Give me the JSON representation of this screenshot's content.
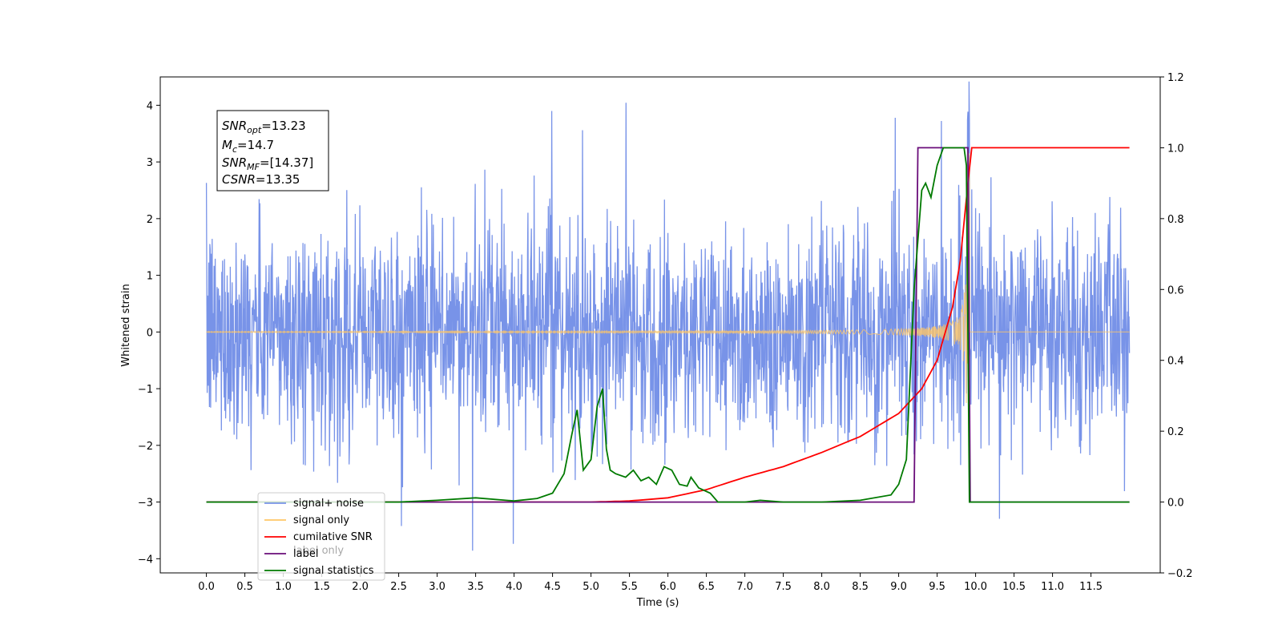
{
  "chart_data": {
    "type": "line",
    "xlabel": "Time (s)",
    "ylabel_left": "Whitened strain",
    "xlim": [
      -0.6,
      12.4
    ],
    "ylim_left": [
      -4.25,
      4.5
    ],
    "ylim_right": [
      -0.2,
      1.2
    ],
    "x_ticks": [
      "0.0",
      "0.5",
      "1.0",
      "1.5",
      "2.0",
      "2.5",
      "3.0",
      "3.5",
      "4.0",
      "4.5",
      "5.0",
      "5.5",
      "6.0",
      "6.5",
      "7.0",
      "7.5",
      "8.0",
      "8.5",
      "9.0",
      "9.5",
      "10.0",
      "10.5",
      "11.0",
      "11.5"
    ],
    "y_ticks_left": [
      "4",
      "3",
      "2",
      "1",
      "0",
      "−1",
      "−2",
      "−3",
      "−4"
    ],
    "y_ticks_right": [
      "1.2",
      "1.0",
      "0.8",
      "0.6",
      "0.4",
      "0.2",
      "0.0",
      "−0.2"
    ],
    "annotation": {
      "snr_opt": "=13.23",
      "mc": "=14.7",
      "snr_mf": "=[14.37]",
      "csnr": "=13.35"
    },
    "legend": {
      "position": "lower-left",
      "entries": [
        {
          "label": "signal+ noise",
          "color": "#7893e8"
        },
        {
          "label": "signal only",
          "color": "#ffc766"
        },
        {
          "label": "cumilative SNR",
          "color": "#ff0000"
        },
        {
          "label": "label",
          "color": "#6a0d7a"
        },
        {
          "label": "signal statistics",
          "color": "#007a00"
        }
      ]
    },
    "hidden_legend_text": "label only",
    "series": [
      {
        "name": "signal+ noise",
        "axis": "left",
        "description": "whitened noise plus signal, 0–12 s",
        "x_range": [
          0,
          12
        ],
        "y_range": [
          -3.85,
          4.12
        ]
      },
      {
        "name": "signal only",
        "axis": "left",
        "description": "chirp with growing amplitude, merger near 9.9 s",
        "peak_time": 9.9,
        "peak_amplitude": 3.2
      },
      {
        "name": "cumilative SNR",
        "axis": "right",
        "x": [
          0,
          5,
          5.5,
          6,
          6.5,
          7,
          7.5,
          8,
          8.5,
          9,
          9.3,
          9.5,
          9.7,
          9.8,
          9.9,
          9.95,
          10,
          12
        ],
        "y": [
          0,
          0,
          0.003,
          0.012,
          0.035,
          0.07,
          0.1,
          0.14,
          0.185,
          0.25,
          0.32,
          0.4,
          0.55,
          0.68,
          0.9,
          1.0,
          1.0,
          1.0
        ]
      },
      {
        "name": "label",
        "axis": "right",
        "x": [
          0,
          9.2,
          9.25,
          9.9,
          9.93,
          12
        ],
        "y": [
          0,
          0,
          1.0,
          1.0,
          0,
          0
        ]
      },
      {
        "name": "signal statistics",
        "axis": "right",
        "x": [
          0,
          2.5,
          3.0,
          3.5,
          4.0,
          4.3,
          4.5,
          4.65,
          4.75,
          4.82,
          4.9,
          5.0,
          5.08,
          5.15,
          5.2,
          5.25,
          5.32,
          5.45,
          5.55,
          5.65,
          5.75,
          5.85,
          5.95,
          6.05,
          6.15,
          6.25,
          6.3,
          6.4,
          6.55,
          6.65,
          7.0,
          7.2,
          7.5,
          8.0,
          8.5,
          8.9,
          9.0,
          9.1,
          9.2,
          9.3,
          9.35,
          9.42,
          9.5,
          9.58,
          9.65,
          9.75,
          9.85,
          9.88,
          9.92,
          12
        ],
        "y": [
          0,
          0,
          0.005,
          0.012,
          0.003,
          0.01,
          0.025,
          0.08,
          0.19,
          0.26,
          0.09,
          0.12,
          0.27,
          0.32,
          0.15,
          0.09,
          0.08,
          0.07,
          0.09,
          0.06,
          0.07,
          0.05,
          0.1,
          0.09,
          0.05,
          0.045,
          0.07,
          0.04,
          0.025,
          0.0,
          0.0,
          0.005,
          0.0,
          0.0,
          0.005,
          0.02,
          0.05,
          0.12,
          0.6,
          0.88,
          0.9,
          0.86,
          0.95,
          1.0,
          1.0,
          1.0,
          1.0,
          0.95,
          0.0,
          0.0
        ]
      }
    ]
  }
}
